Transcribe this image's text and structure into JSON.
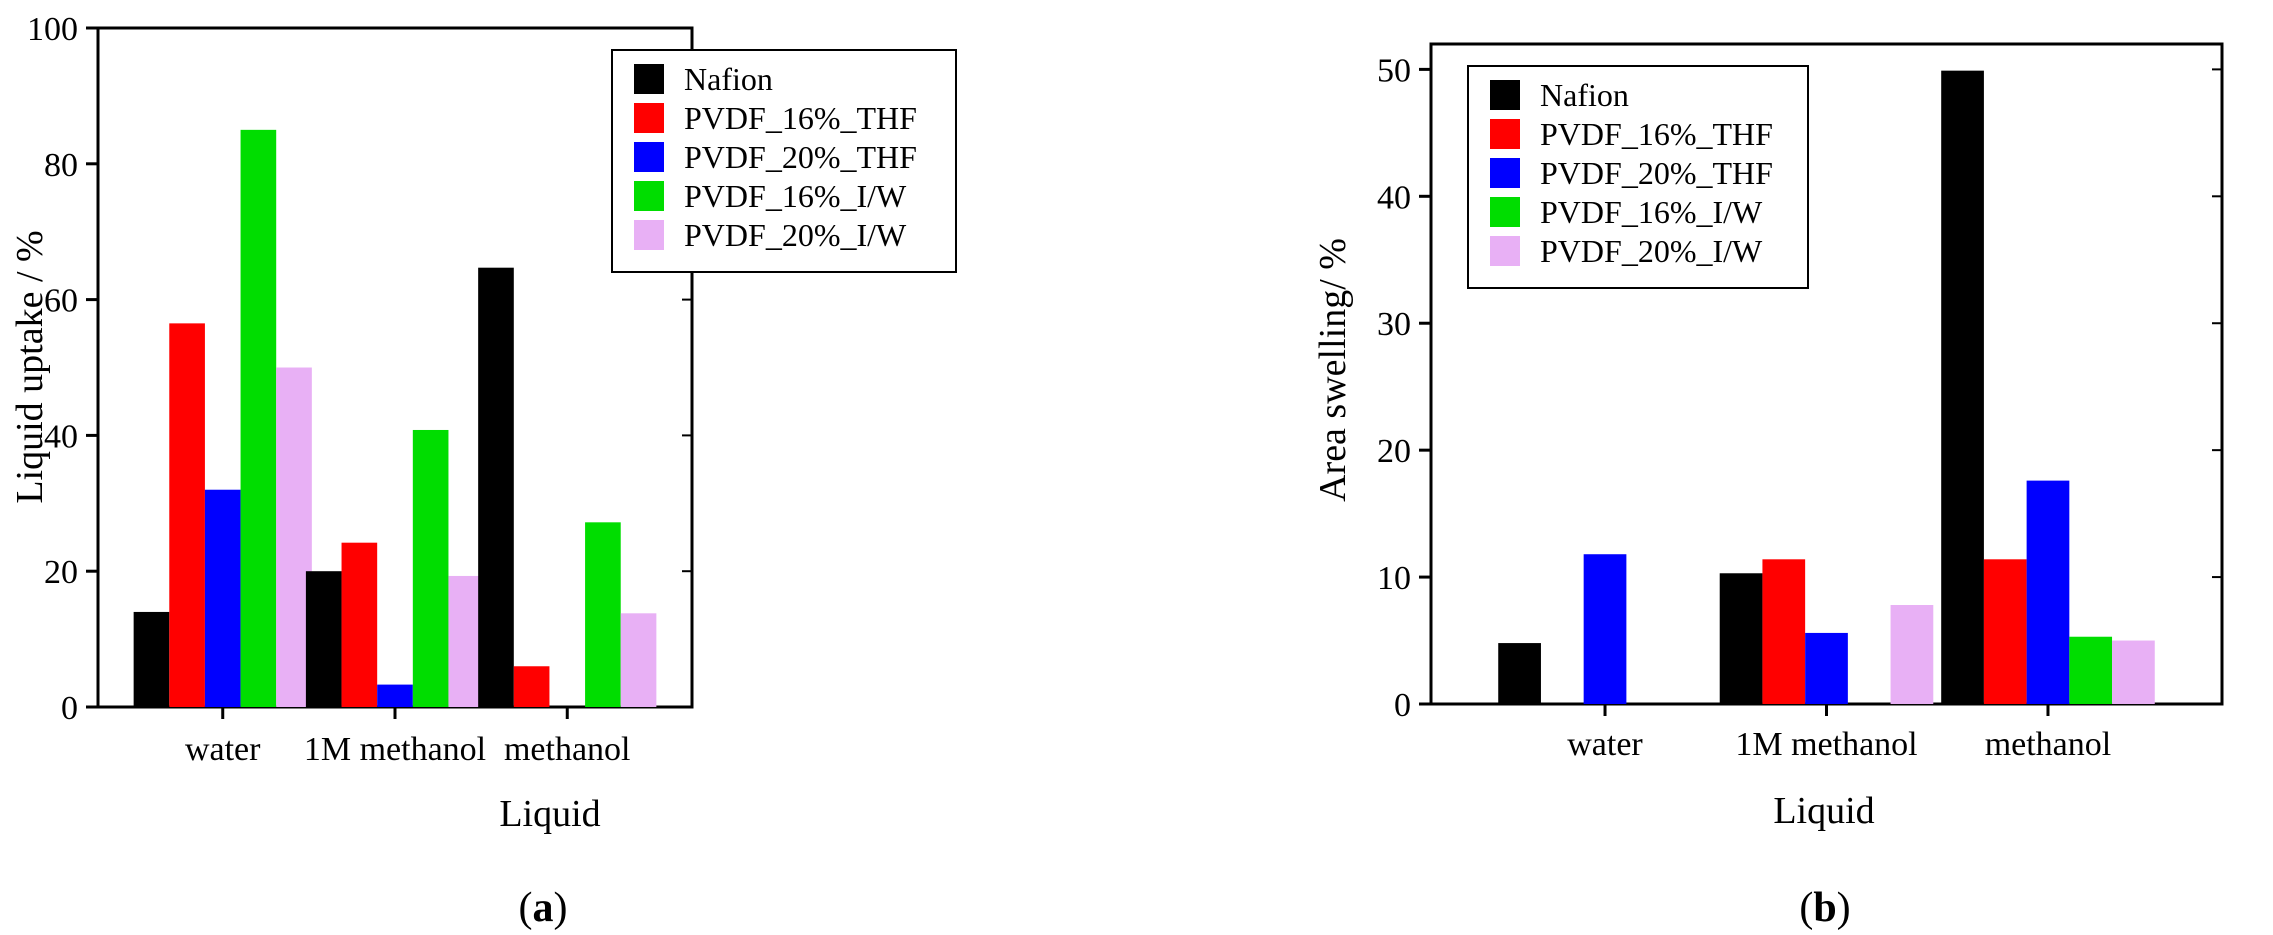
{
  "chart_data": [
    {
      "type": "bar",
      "panel": "a",
      "panel_label": {
        "open": "(",
        "letter": "a",
        "close": ")"
      },
      "categories": [
        "water",
        "1M methanol",
        "methanol"
      ],
      "series": [
        {
          "name": "Nafion",
          "color": "#000000",
          "values": [
            14,
            20,
            64.7
          ]
        },
        {
          "name": "PVDF_16%_THF",
          "color": "#ff0000",
          "values": [
            56.5,
            24.2,
            6
          ]
        },
        {
          "name": "PVDF_20%_THF",
          "color": "#0000ff",
          "values": [
            32,
            3.3,
            0
          ]
        },
        {
          "name": "PVDF_16%_I/W",
          "color": "#00dd00",
          "values": [
            85,
            40.8,
            27.2
          ]
        },
        {
          "name": "PVDF_20%_I/W",
          "color": "#e8b0f5",
          "values": [
            50,
            19.3,
            13.8
          ]
        }
      ],
      "xlabel": "Liquid",
      "ylabel": "Liquid uptake / %",
      "ylim": [
        0,
        100
      ],
      "yticks": [
        0,
        20,
        40,
        60,
        80,
        100
      ],
      "legend_position": "top-right"
    },
    {
      "type": "bar",
      "panel": "b",
      "panel_label": {
        "open": "(",
        "letter": "b",
        "close": ")"
      },
      "categories": [
        "water",
        "1M methanol",
        "methanol"
      ],
      "series": [
        {
          "name": "Nafion",
          "color": "#000000",
          "values": [
            4.8,
            10.3,
            49.9
          ]
        },
        {
          "name": "PVDF_16%_THF",
          "color": "#ff0000",
          "values": [
            0,
            11.4,
            11.4
          ]
        },
        {
          "name": "PVDF_20%_THF",
          "color": "#0000ff",
          "values": [
            11.8,
            5.6,
            17.6
          ]
        },
        {
          "name": "PVDF_16%_I/W",
          "color": "#00dd00",
          "values": [
            0,
            0,
            5.3
          ]
        },
        {
          "name": "PVDF_20%_I/W",
          "color": "#e8b0f5",
          "values": [
            0,
            7.8,
            5
          ]
        }
      ],
      "xlabel": "Liquid",
      "ylabel": "Area swelling/ %",
      "ylim": [
        0,
        52
      ],
      "yticks": [
        0,
        10,
        20,
        30,
        40,
        50
      ],
      "legend_position": "top-left"
    }
  ]
}
